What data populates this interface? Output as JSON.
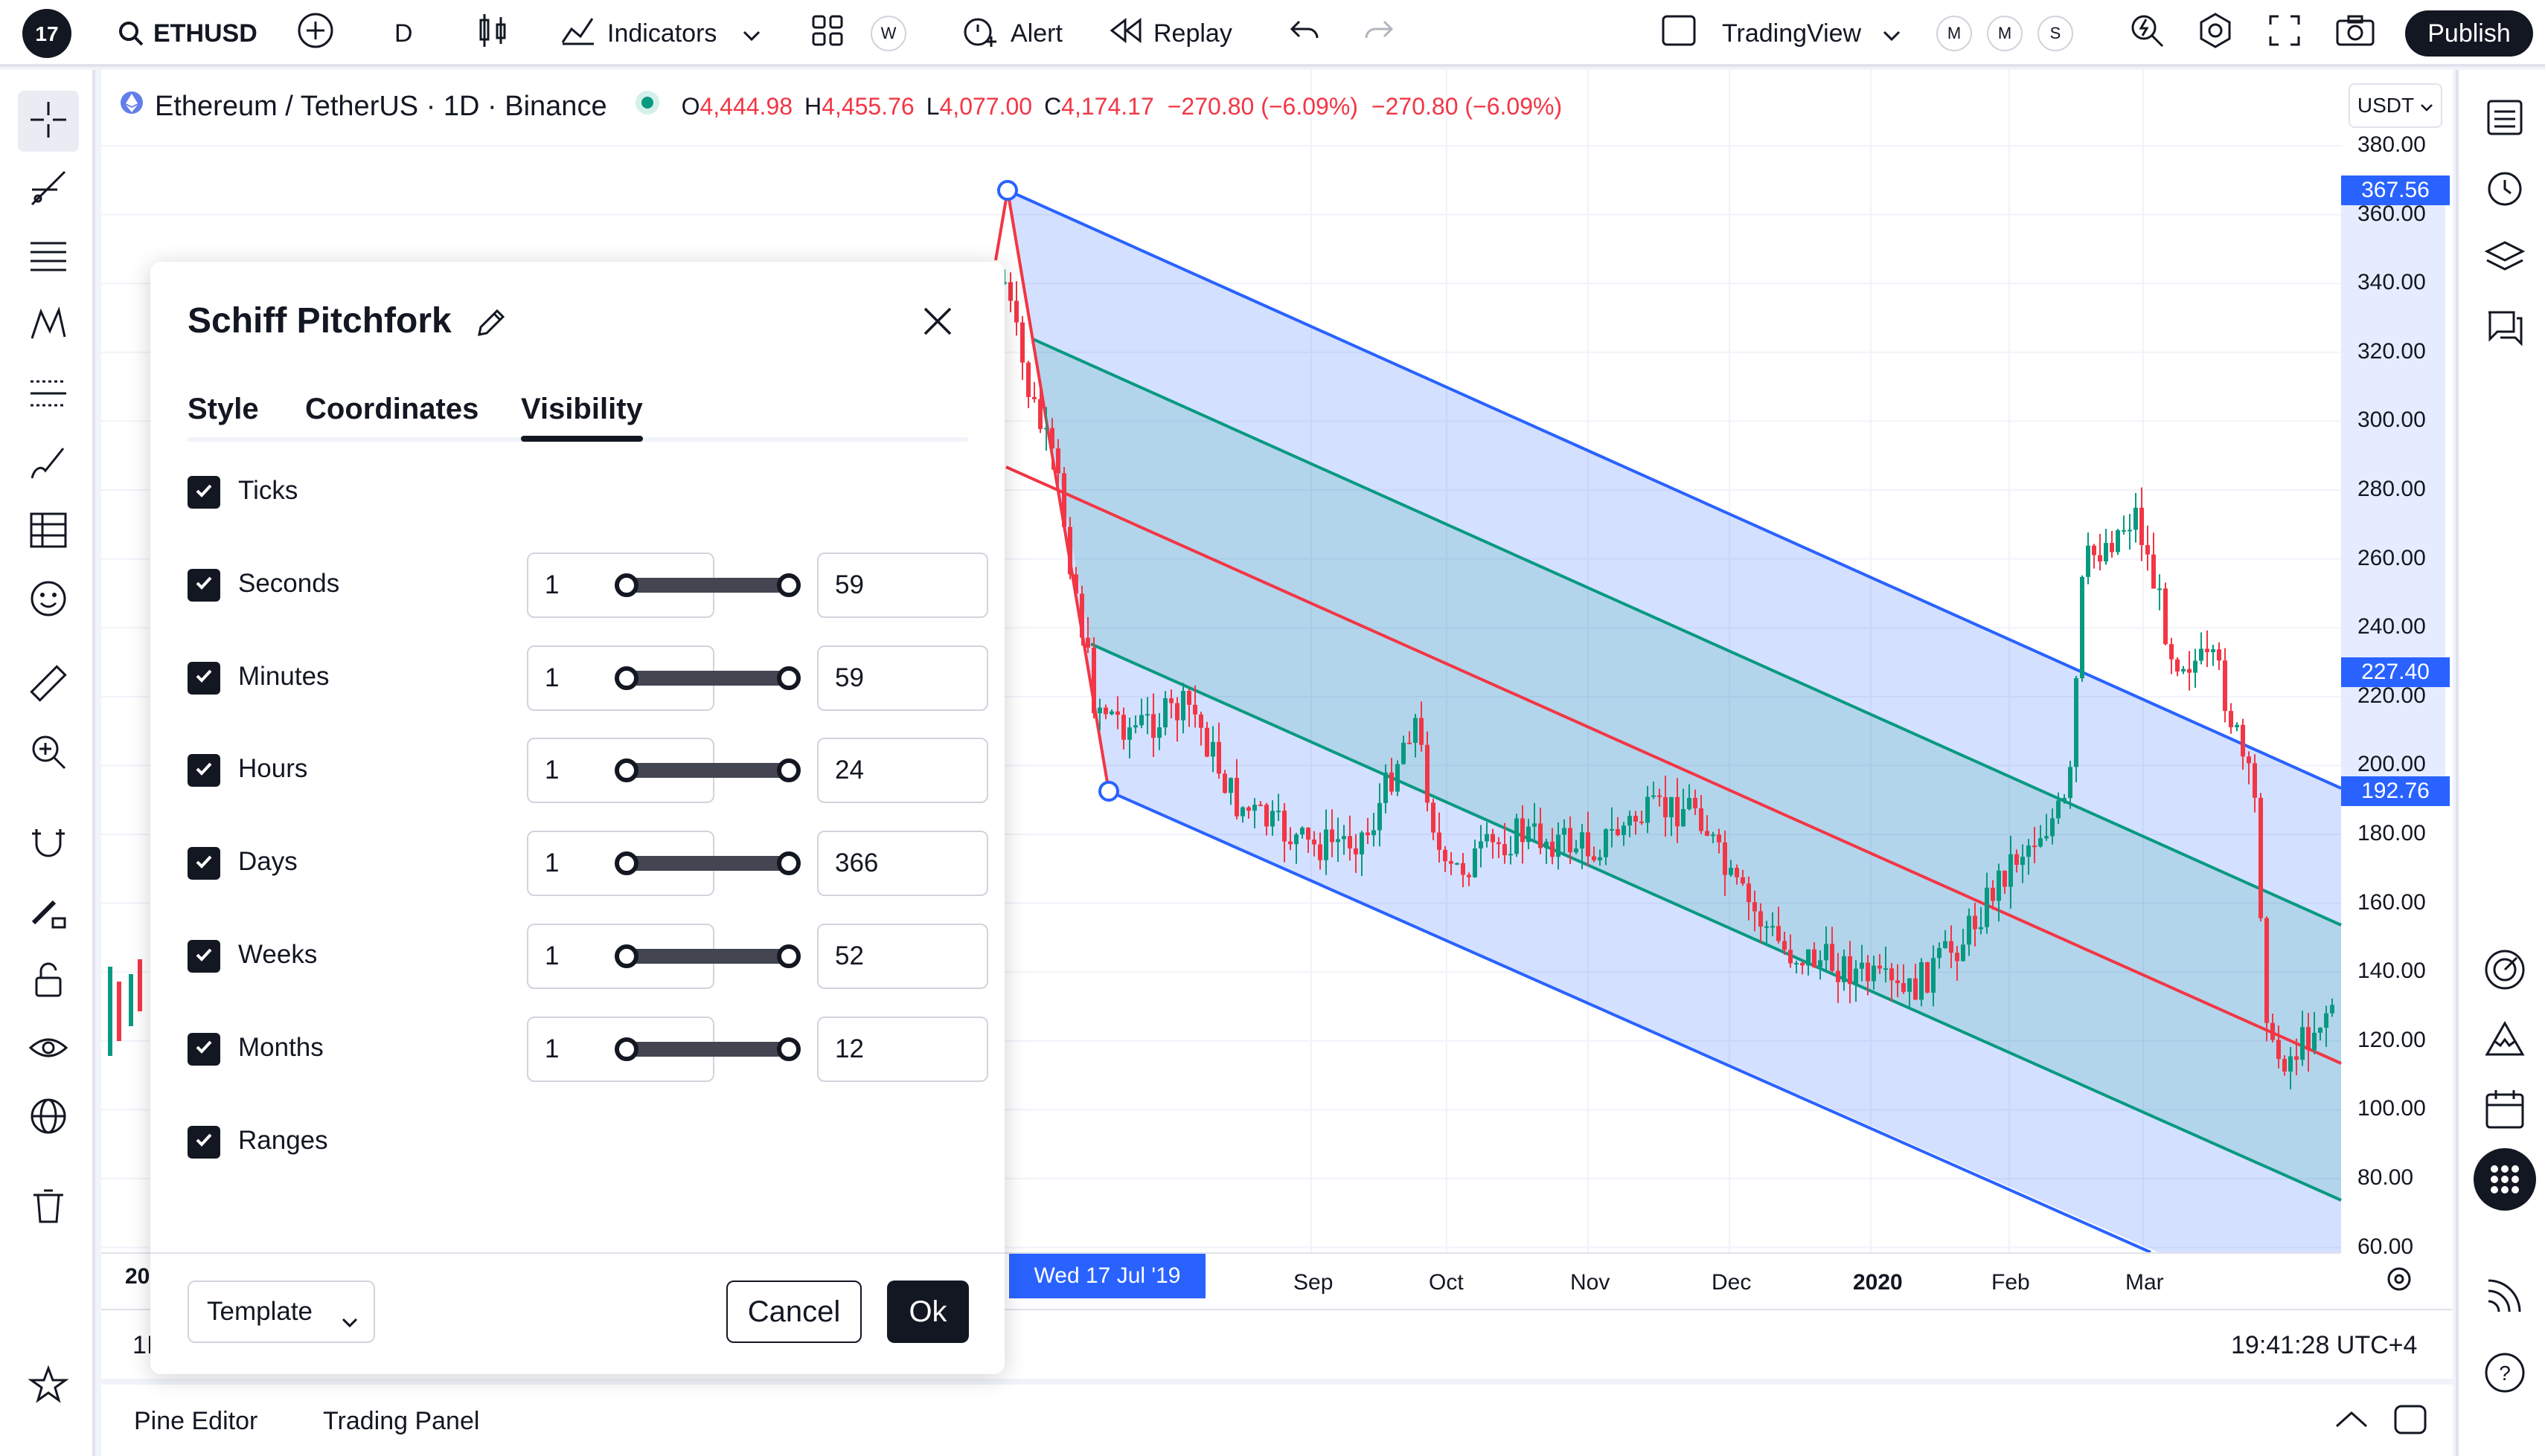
{
  "topbar": {
    "symbol": "ETHUSD",
    "interval": "D",
    "indicators_label": "Indicators",
    "alert_label": "Alert",
    "replay_label": "Replay",
    "layout_name": "TradingView",
    "publish_label": "Publish",
    "pills_left": [
      "W"
    ],
    "pills_right": [
      "M",
      "M",
      "S"
    ]
  },
  "legend": {
    "title": "Ethereum / TetherUS · 1D · Binance",
    "o_label": "O",
    "o_value": "4,444.98",
    "h_label": "H",
    "h_value": "4,455.76",
    "l_label": "L",
    "l_value": "4,077.00",
    "c_label": "C",
    "c_value": "4,174.17",
    "change1": "−270.80 (−6.09%)",
    "change2": "−270.80 (−6.09%)"
  },
  "currency": "USDT",
  "price_axis": {
    "ticks": [
      "380.00",
      "360.00",
      "340.00",
      "320.00",
      "300.00",
      "280.00",
      "260.00",
      "240.00",
      "220.00",
      "200.00",
      "180.00",
      "160.00",
      "140.00",
      "120.00",
      "100.00",
      "80.00",
      "60.00"
    ],
    "badges": [
      {
        "value": "367.56"
      },
      {
        "value": "227.40"
      },
      {
        "value": "192.76"
      }
    ]
  },
  "time_axis": {
    "ticks": [
      "Sep",
      "Oct",
      "Nov",
      "Dec",
      "2020",
      "Feb",
      "Mar"
    ],
    "crosshair_label": "Wed 17 Jul '19",
    "left_partial": "20"
  },
  "bottom": {
    "interval_partial": "1I",
    "clock": "19:41:28 UTC+4",
    "tabs": [
      "Pine Editor",
      "Trading Panel"
    ]
  },
  "dialog": {
    "title": "Schiff Pitchfork",
    "tabs": [
      "Style",
      "Coordinates",
      "Visibility"
    ],
    "active_tab": "Visibility",
    "rows": [
      {
        "label": "Ticks",
        "checked": true
      },
      {
        "label": "Seconds",
        "checked": true,
        "min": "1",
        "max": "59"
      },
      {
        "label": "Minutes",
        "checked": true,
        "min": "1",
        "max": "59"
      },
      {
        "label": "Hours",
        "checked": true,
        "min": "1",
        "max": "24"
      },
      {
        "label": "Days",
        "checked": true,
        "min": "1",
        "max": "366"
      },
      {
        "label": "Weeks",
        "checked": true,
        "min": "1",
        "max": "52"
      },
      {
        "label": "Months",
        "checked": true,
        "min": "1",
        "max": "12"
      },
      {
        "label": "Ranges",
        "checked": true
      }
    ],
    "template_label": "Template",
    "cancel_label": "Cancel",
    "ok_label": "Ok"
  },
  "colors": {
    "accent": "#2962ff",
    "down": "#f23645",
    "up": "#089981",
    "pitchfork_outer": "#2962ff",
    "pitchfork_inner": "#089981",
    "pitchfork_median": "#f23645"
  }
}
